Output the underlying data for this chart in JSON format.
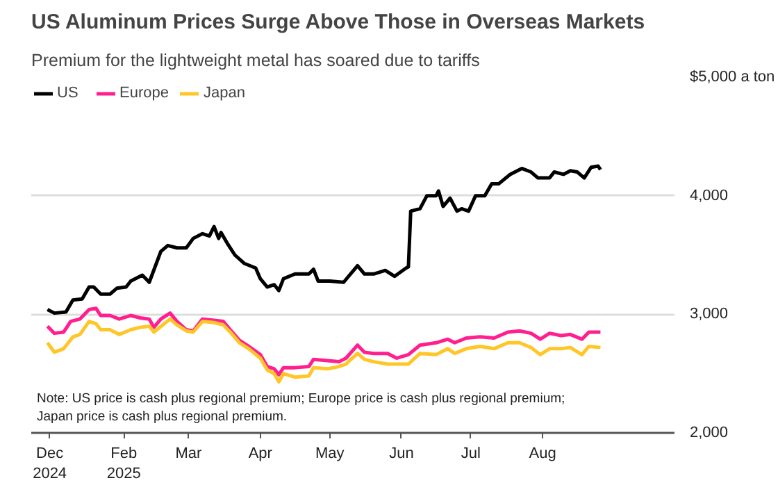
{
  "chart_data": {
    "type": "line",
    "title": "US Aluminum Prices Surge Above Those in Overseas Markets",
    "subtitle": "Premium for the lightweight metal has soared due to tariffs",
    "annotations": [
      "Note: US price is cash plus regional premium; Europe price is cash plus regional premium;",
      "Japan price is cash plus regional premium."
    ],
    "legend": "top left",
    "grid": "y",
    "line_style": "solid",
    "marker": "none",
    "xlim": [
      "2024-12-23",
      "2025-09-27"
    ],
    "xticks": [
      {
        "value": "2024-12-31",
        "label": "Dec\n2024"
      },
      {
        "value": "2025-02-01",
        "label": "Feb\n2025"
      },
      {
        "value": "2025-03-01",
        "label": "Mar"
      },
      {
        "value": "2025-04-01",
        "label": "Apr"
      },
      {
        "value": "2025-05-01",
        "label": "May"
      },
      {
        "value": "2025-06-01",
        "label": "Jun"
      },
      {
        "value": "2025-07-01",
        "label": "Jul"
      },
      {
        "value": "2025-08-01",
        "label": "Aug"
      }
    ],
    "ylim": [
      2000,
      5000
    ],
    "yticks": [
      {
        "value": 2000,
        "label": "2,000"
      },
      {
        "value": 3000,
        "label": "3,000"
      },
      {
        "value": 4000,
        "label": "4,000"
      },
      {
        "value": 5000,
        "label": "$5,000 a ton"
      }
    ],
    "series": [
      {
        "name": "US",
        "color": "#000000",
        "x": [
          "2024-12-30",
          "2025-01-02",
          "2025-01-07",
          "2025-01-10",
          "2025-01-14",
          "2025-01-17",
          "2025-01-19",
          "2025-01-22",
          "2025-01-26",
          "2025-01-29",
          "2025-02-02",
          "2025-02-04",
          "2025-02-09",
          "2025-02-12",
          "2025-02-17",
          "2025-02-20",
          "2025-02-24",
          "2025-02-28",
          "2025-03-03",
          "2025-03-07",
          "2025-03-10",
          "2025-03-12",
          "2025-03-14",
          "2025-03-15",
          "2025-03-18",
          "2025-03-21",
          "2025-03-25",
          "2025-03-30",
          "2025-04-01",
          "2025-04-04",
          "2025-04-07",
          "2025-04-09",
          "2025-04-11",
          "2025-04-16",
          "2025-04-22",
          "2025-04-24",
          "2025-04-26",
          "2025-05-01",
          "2025-05-07",
          "2025-05-13",
          "2025-05-16",
          "2025-05-20",
          "2025-05-25",
          "2025-05-29",
          "2025-06-03",
          "2025-06-04",
          "2025-06-05",
          "2025-06-09",
          "2025-06-12",
          "2025-06-16",
          "2025-06-17",
          "2025-06-19",
          "2025-06-22",
          "2025-06-25",
          "2025-06-27",
          "2025-06-30",
          "2025-07-03",
          "2025-07-07",
          "2025-07-10",
          "2025-07-13",
          "2025-07-18",
          "2025-07-23",
          "2025-07-27",
          "2025-07-30",
          "2025-08-04",
          "2025-08-06",
          "2025-08-10",
          "2025-08-13",
          "2025-08-16",
          "2025-08-19",
          "2025-08-22",
          "2025-08-25",
          "2025-08-26"
        ],
        "values": [
          3040,
          3010,
          3020,
          3120,
          3130,
          3230,
          3230,
          3170,
          3170,
          3220,
          3230,
          3280,
          3330,
          3270,
          3530,
          3580,
          3560,
          3560,
          3640,
          3680,
          3660,
          3740,
          3640,
          3690,
          3590,
          3500,
          3430,
          3390,
          3300,
          3230,
          3250,
          3200,
          3300,
          3340,
          3340,
          3380,
          3280,
          3280,
          3270,
          3410,
          3340,
          3340,
          3370,
          3320,
          3390,
          3400,
          3870,
          3890,
          4000,
          4000,
          4040,
          3910,
          3980,
          3870,
          3890,
          3870,
          4000,
          4000,
          4100,
          4100,
          4180,
          4230,
          4200,
          4150,
          4150,
          4200,
          4180,
          4210,
          4200,
          4150,
          4240,
          4250,
          4220
        ]
      },
      {
        "name": "Europe",
        "color": "#ff1f8e",
        "x": [
          "2024-12-30",
          "2025-01-02",
          "2025-01-06",
          "2025-01-09",
          "2025-01-13",
          "2025-01-17",
          "2025-01-20",
          "2025-01-22",
          "2025-01-26",
          "2025-01-30",
          "2025-02-04",
          "2025-02-08",
          "2025-02-12",
          "2025-02-14",
          "2025-02-17",
          "2025-02-21",
          "2025-02-24",
          "2025-02-28",
          "2025-03-03",
          "2025-03-07",
          "2025-03-12",
          "2025-03-16",
          "2025-03-19",
          "2025-03-23",
          "2025-03-27",
          "2025-04-01",
          "2025-04-04",
          "2025-04-07",
          "2025-04-09",
          "2025-04-11",
          "2025-04-16",
          "2025-04-22",
          "2025-04-24",
          "2025-04-30",
          "2025-05-05",
          "2025-05-08",
          "2025-05-13",
          "2025-05-16",
          "2025-05-20",
          "2025-05-26",
          "2025-05-30",
          "2025-06-04",
          "2025-06-09",
          "2025-06-16",
          "2025-06-21",
          "2025-06-24",
          "2025-06-29",
          "2025-07-05",
          "2025-07-11",
          "2025-07-17",
          "2025-07-22",
          "2025-07-27",
          "2025-07-31",
          "2025-08-04",
          "2025-08-09",
          "2025-08-13",
          "2025-08-18",
          "2025-08-21",
          "2025-08-26"
        ],
        "values": [
          2900,
          2840,
          2850,
          2940,
          2960,
          3040,
          3050,
          2990,
          2990,
          2960,
          2990,
          2970,
          2960,
          2890,
          2960,
          3010,
          2940,
          2870,
          2860,
          2960,
          2950,
          2940,
          2870,
          2780,
          2730,
          2660,
          2560,
          2540,
          2490,
          2550,
          2550,
          2560,
          2620,
          2610,
          2600,
          2630,
          2740,
          2680,
          2670,
          2670,
          2630,
          2660,
          2740,
          2760,
          2790,
          2760,
          2800,
          2810,
          2800,
          2850,
          2860,
          2840,
          2790,
          2840,
          2820,
          2830,
          2790,
          2850,
          2850
        ]
      },
      {
        "name": "Japan",
        "color": "#ffc629",
        "x": [
          "2024-12-30",
          "2025-01-02",
          "2025-01-06",
          "2025-01-10",
          "2025-01-13",
          "2025-01-17",
          "2025-01-20",
          "2025-01-22",
          "2025-01-26",
          "2025-01-30",
          "2025-02-04",
          "2025-02-08",
          "2025-02-12",
          "2025-02-14",
          "2025-02-21",
          "2025-02-24",
          "2025-02-28",
          "2025-03-03",
          "2025-03-07",
          "2025-03-12",
          "2025-03-16",
          "2025-03-19",
          "2025-03-23",
          "2025-03-27",
          "2025-04-01",
          "2025-04-04",
          "2025-04-07",
          "2025-04-09",
          "2025-04-11",
          "2025-04-16",
          "2025-04-22",
          "2025-04-24",
          "2025-04-30",
          "2025-05-05",
          "2025-05-08",
          "2025-05-13",
          "2025-05-16",
          "2025-05-20",
          "2025-05-26",
          "2025-05-30",
          "2025-06-04",
          "2025-06-09",
          "2025-06-16",
          "2025-06-21",
          "2025-06-24",
          "2025-06-29",
          "2025-07-05",
          "2025-07-11",
          "2025-07-17",
          "2025-07-22",
          "2025-07-27",
          "2025-07-31",
          "2025-08-04",
          "2025-08-09",
          "2025-08-13",
          "2025-08-18",
          "2025-08-21",
          "2025-08-26"
        ],
        "values": [
          2760,
          2680,
          2710,
          2810,
          2830,
          2940,
          2920,
          2870,
          2870,
          2830,
          2870,
          2890,
          2900,
          2850,
          2960,
          2910,
          2860,
          2850,
          2940,
          2930,
          2910,
          2850,
          2760,
          2710,
          2630,
          2530,
          2500,
          2430,
          2500,
          2470,
          2480,
          2550,
          2540,
          2560,
          2580,
          2670,
          2620,
          2600,
          2580,
          2580,
          2580,
          2670,
          2660,
          2710,
          2670,
          2710,
          2730,
          2710,
          2760,
          2760,
          2720,
          2660,
          2710,
          2710,
          2720,
          2660,
          2730,
          2720
        ]
      }
    ]
  }
}
